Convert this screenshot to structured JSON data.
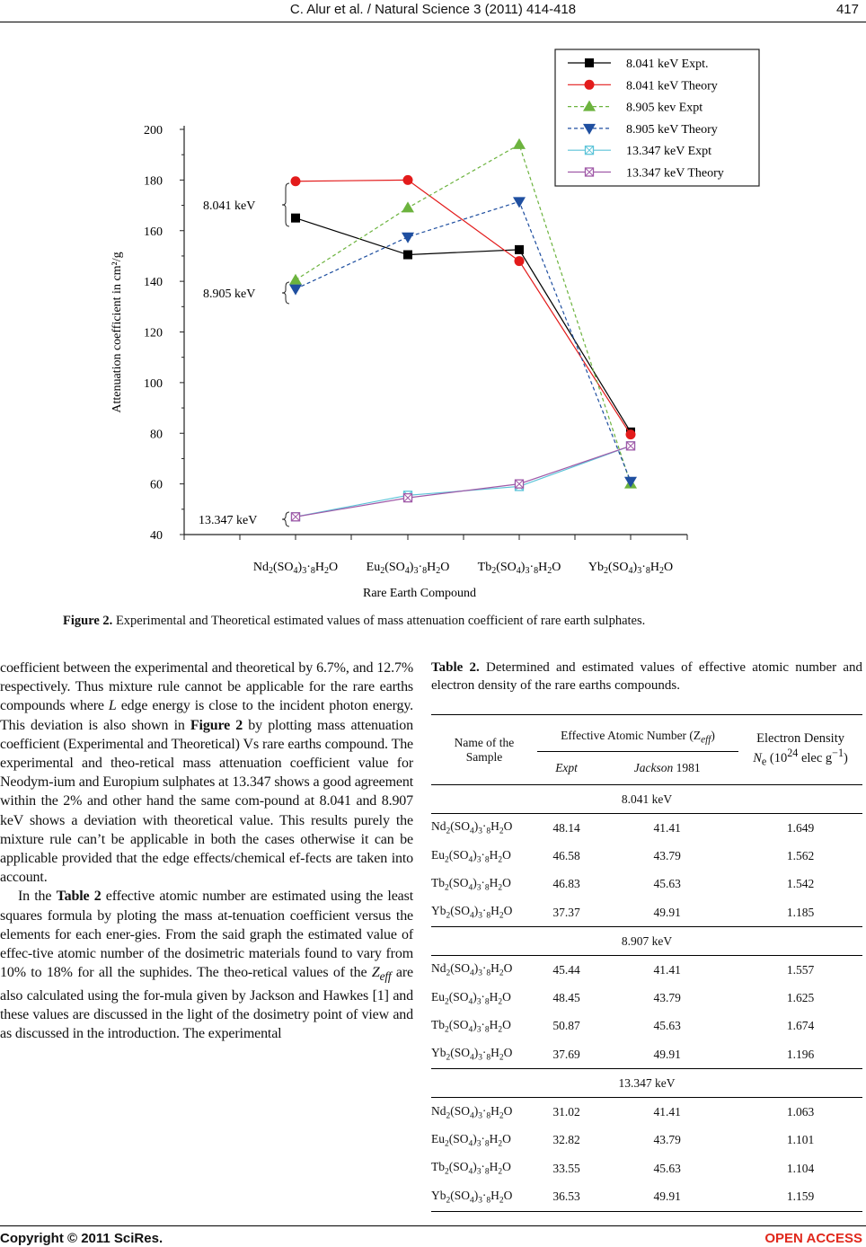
{
  "header": {
    "running_title": "C. Alur et al. / Natural Science 3 (2011) 414-418",
    "page_number": "417"
  },
  "figure": {
    "caption_label": "Figure 2.",
    "caption_text": " Experimental and Theoretical estimated values of mass attenuation coefficient of rare earth sulphates.",
    "annotations": [
      "8.041 keV",
      "8.905 keV",
      "13.347 keV"
    ]
  },
  "chart_data": {
    "type": "line",
    "xlabel": "Rare Earth Compound",
    "ylabel": "Attenuation coefficient in cm²/g",
    "ylim": [
      40,
      200
    ],
    "yticks": [
      40,
      60,
      80,
      100,
      120,
      140,
      160,
      180,
      200
    ],
    "categories": [
      "Nd2(SO4)3·8H2O",
      "Eu2(SO4)3·8H2O",
      "Tb2(SO4)3·8H2O",
      "Yb2(SO4)3·8H2O"
    ],
    "legend_position": "top-right",
    "series": [
      {
        "name": "8.041 keV Expt.",
        "color": "#000000",
        "marker": "square",
        "dash": false,
        "values": [
          165,
          150.5,
          152.5,
          80.5
        ]
      },
      {
        "name": "8.041 keV Theory",
        "color": "#e31b1b",
        "marker": "circle",
        "dash": false,
        "values": [
          179.5,
          180,
          148,
          79.5
        ]
      },
      {
        "name": "8.905 kev Expt",
        "color": "#6cb33e",
        "marker": "triangle-up",
        "dash": true,
        "values": [
          140.5,
          169,
          194,
          60
        ]
      },
      {
        "name": "8.905 keV Theory",
        "color": "#1f4fa0",
        "marker": "triangle-down",
        "dash": true,
        "values": [
          137,
          157.5,
          171.5,
          61
        ]
      },
      {
        "name": "13.347 keV Expt",
        "color": "#5bc3d8",
        "marker": "boxed-x",
        "dash": false,
        "values": [
          47,
          55.5,
          59,
          75
        ]
      },
      {
        "name": "13.347 keV Theory",
        "color": "#a05aa8",
        "marker": "boxed-x",
        "dash": false,
        "values": [
          47,
          54.5,
          60,
          75
        ]
      }
    ]
  },
  "body": {
    "paragraphs": [
      {
        "indent": false,
        "segs": [
          {
            "t": "coefficient between the experimental and theoretical by 6.7%, and 12.7% respectively. Thus mixture rule cannot be applicable for the rare earths compounds where "
          },
          {
            "t": "L",
            "i": true
          },
          {
            "t": " edge energy is close to the incident photon energy. This deviation is also shown in "
          },
          {
            "t": "Figure 2",
            "b": true
          },
          {
            "t": " by plotting mass attenuation coefficient (Experimental and Theoretical) Vs rare earths compound. The experimental and theo-retical mass attenuation coefficient value for Neodym-ium and Europium sulphates at 13.347 shows a good agreement within the 2% and other hand the same com-pound at 8.041 and 8.907 keV shows a deviation with theoretical value. This results purely the mixture rule can’t be applicable in both the cases otherwise it can be applicable provided that the edge effects/chemical ef-fects are taken into account."
          }
        ]
      },
      {
        "indent": true,
        "segs": [
          {
            "t": "In the "
          },
          {
            "t": "Table 2",
            "b": true
          },
          {
            "t": " effective atomic number are estimated using the least squares formula by ploting the mass at-tenuation coefficient versus the elements for each ener-gies. From the said graph the estimated value of effec-tive atomic number of the dosimetric materials found to vary from 10% to 18% for all the suphides. The theo-retical values of the "
          },
          {
            "t": "Z",
            "i": true
          },
          {
            "t": "eff",
            "i": true,
            "sub": true
          },
          {
            "t": " are also calculated using the for-mula given by Jackson and Hawkes [1] and these values are discussed in the light of the dosimetry point of view and as discussed in the introduction. The experimental"
          }
        ]
      }
    ]
  },
  "table": {
    "caption_label": "Table 2.",
    "caption_text": " Determined and estimated values of effective atomic number and electron density of the rare earths compounds.",
    "headers": {
      "name1": "Name of the",
      "name2": "Sample",
      "zeff": "Effective Atomic Number (Z",
      "zeff_sub": "eff",
      "zeff_close": ")",
      "expt": "Expt",
      "jackson": "Jackson",
      "jackson_year": " 1981",
      "ne1": "Electron Density",
      "ne2": "N",
      "ne2_sub": "e",
      "ne2_rest": " (10",
      "ne2_sup": "24",
      "ne2_rest2": " elec g",
      "ne2_sup2": "−1",
      "ne2_end": ")"
    },
    "sections": [
      {
        "energy": "8.041 keV",
        "rows": [
          [
            "Nd2(SO4)3·8H2O",
            "48.14",
            "41.41",
            "1.649"
          ],
          [
            "Eu2(SO4)3·8H2O",
            "46.58",
            "43.79",
            "1.562"
          ],
          [
            "Tb2(SO4)3·8H2O",
            "46.83",
            "45.63",
            "1.542"
          ],
          [
            "Yb2(SO4)3·8H2O",
            "37.37",
            "49.91",
            "1.185"
          ]
        ]
      },
      {
        "energy": "8.907 keV",
        "rows": [
          [
            "Nd2(SO4)3·8H2O",
            "45.44",
            "41.41",
            "1.557"
          ],
          [
            "Eu2(SO4)3·8H2O",
            "48.45",
            "43.79",
            "1.625"
          ],
          [
            "Tb2(SO4)3·8H2O",
            "50.87",
            "45.63",
            "1.674"
          ],
          [
            "Yb2(SO4)3·8H2O",
            "37.69",
            "49.91",
            "1.196"
          ]
        ]
      },
      {
        "energy": "13.347 keV",
        "rows": [
          [
            "Nd2(SO4)3·8H2O",
            "31.02",
            "41.41",
            "1.063"
          ],
          [
            "Eu2(SO4)3·8H2O",
            "32.82",
            "43.79",
            "1.101"
          ],
          [
            "Tb2(SO4)3·8H2O",
            "33.55",
            "45.63",
            "1.104"
          ],
          [
            "Yb2(SO4)3·8H2O",
            "36.53",
            "49.91",
            "1.159"
          ]
        ]
      }
    ]
  },
  "footer": {
    "copyright": "Copyright © 2011 SciRes.",
    "access": "OPEN ACCESS"
  }
}
